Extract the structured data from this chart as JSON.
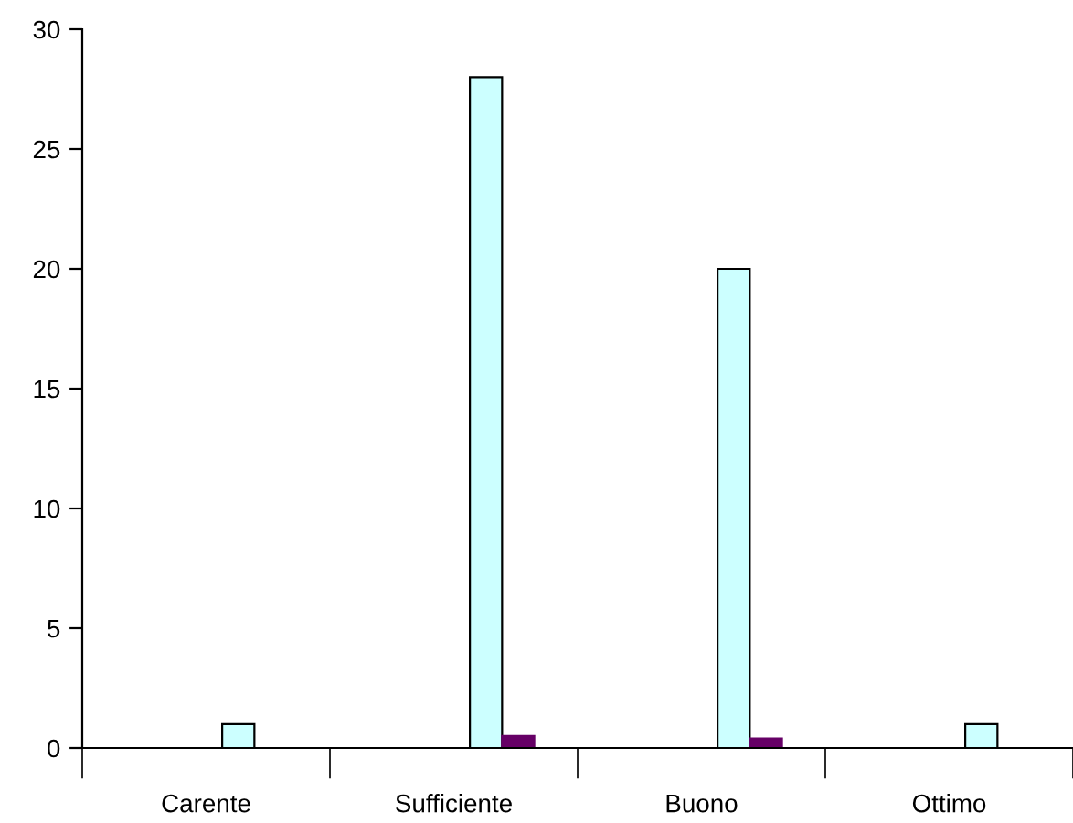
{
  "chart_data": {
    "type": "bar",
    "categories": [
      "Carente",
      "Sufficiente",
      "Buono",
      "Ottimo"
    ],
    "series": [
      {
        "values": [
          null,
          null,
          null,
          null
        ]
      },
      {
        "values": [
          null,
          null,
          null,
          null
        ]
      },
      {
        "values": [
          null,
          null,
          null,
          null
        ]
      },
      {
        "color": "#ccffff",
        "values": [
          1,
          28,
          20,
          1
        ]
      },
      {
        "color": "#660066",
        "values": [
          0,
          0.5,
          0.4,
          0
        ]
      }
    ],
    "ylim": [
      0,
      30
    ],
    "yticks": [
      0,
      5,
      10,
      15,
      20,
      25,
      30
    ],
    "grid": false,
    "legend": false
  }
}
